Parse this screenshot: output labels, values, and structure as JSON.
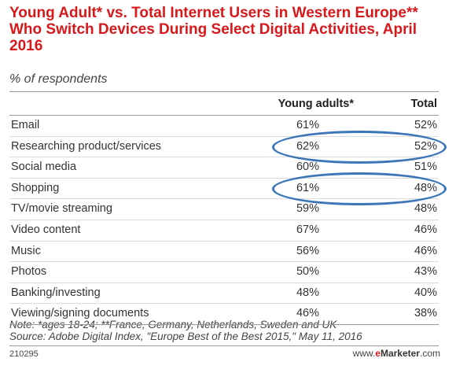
{
  "title": "Young Adult* vs. Total Internet Users in Western Europe** Who Switch Devices During Select Digital Activities, April 2016",
  "subtitle": "% of respondents",
  "chart_data": {
    "type": "table",
    "title": "Young Adult* vs. Total Internet Users in Western Europe** Who Switch Devices During Select Digital Activities, April 2016",
    "subtitle": "% of respondents",
    "columns": [
      "",
      "Young adults*",
      "Total"
    ],
    "rows": [
      {
        "label": "Email",
        "young_adults": "61%",
        "total": "52%"
      },
      {
        "label": "Researching product/services",
        "young_adults": "62%",
        "total": "52%"
      },
      {
        "label": "Social media",
        "young_adults": "60%",
        "total": "51%"
      },
      {
        "label": "Shopping",
        "young_adults": "61%",
        "total": "48%"
      },
      {
        "label": "TV/movie streaming",
        "young_adults": "59%",
        "total": "48%"
      },
      {
        "label": "Video content",
        "young_adults": "67%",
        "total": "46%"
      },
      {
        "label": "Music",
        "young_adults": "56%",
        "total": "46%"
      },
      {
        "label": "Photos",
        "young_adults": "50%",
        "total": "43%"
      },
      {
        "label": "Banking/investing",
        "young_adults": "48%",
        "total": "40%"
      },
      {
        "label": "Viewing/signing documents",
        "young_adults": "46%",
        "total": "38%"
      }
    ],
    "highlighted_rows": [
      "Researching product/services",
      "Shopping"
    ],
    "highlight_color": "#3d76b8"
  },
  "notes": {
    "note": "Note: *ages 18-24; **France, Germany, Netherlands, Sweden and UK",
    "source": "Source: Adobe Digital Index, \"Europe Best of the Best 2015,\" May 11, 2016"
  },
  "footer": {
    "code": "210295",
    "brand_prefix": "www.",
    "brand_e": "e",
    "brand_name": "Marketer",
    "brand_suffix": ".com"
  },
  "colors": {
    "title": "#d7191c",
    "highlight": "#3d76b8"
  }
}
